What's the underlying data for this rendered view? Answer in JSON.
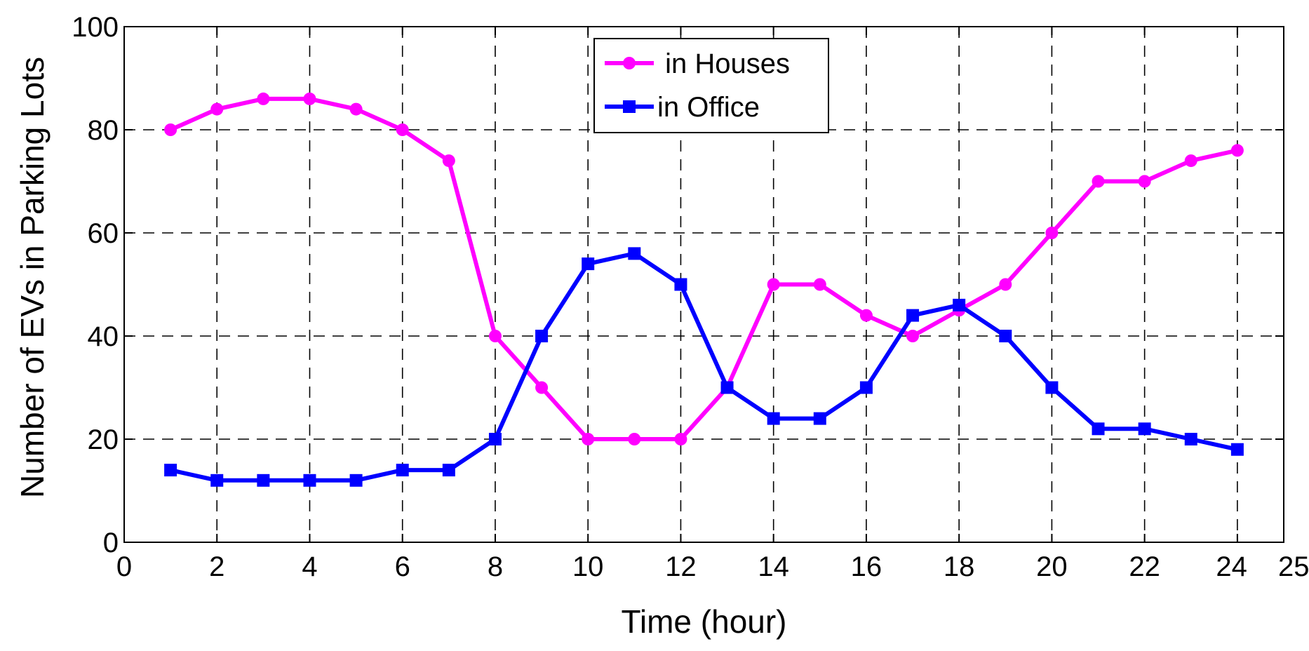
{
  "chart_data": {
    "type": "line",
    "title": "",
    "xlabel": "Time (hour)",
    "ylabel": "Number of EVs in Parking Lots",
    "xlim": [
      0,
      25
    ],
    "ylim": [
      0,
      100
    ],
    "xticks": [
      0,
      2,
      4,
      6,
      8,
      10,
      12,
      14,
      16,
      18,
      20,
      22,
      24,
      25
    ],
    "yticks": [
      0,
      20,
      40,
      60,
      80,
      100
    ],
    "grid": true,
    "legend_position": "top-center",
    "x": [
      1,
      2,
      3,
      4,
      5,
      6,
      7,
      8,
      9,
      10,
      11,
      12,
      13,
      14,
      15,
      16,
      17,
      18,
      19,
      20,
      21,
      22,
      23,
      24
    ],
    "series": [
      {
        "name": " in Houses",
        "color": "#ff00ff",
        "marker": "circle",
        "values": [
          80,
          84,
          86,
          86,
          84,
          80,
          74,
          40,
          30,
          20,
          20,
          20,
          30,
          50,
          50,
          44,
          40,
          45,
          50,
          60,
          70,
          70,
          74,
          76
        ]
      },
      {
        "name": "in Office",
        "color": "#0000ff",
        "marker": "square",
        "values": [
          14,
          12,
          12,
          12,
          12,
          14,
          14,
          20,
          40,
          54,
          56,
          50,
          30,
          24,
          24,
          30,
          44,
          46,
          40,
          30,
          22,
          22,
          20,
          18
        ]
      }
    ]
  }
}
